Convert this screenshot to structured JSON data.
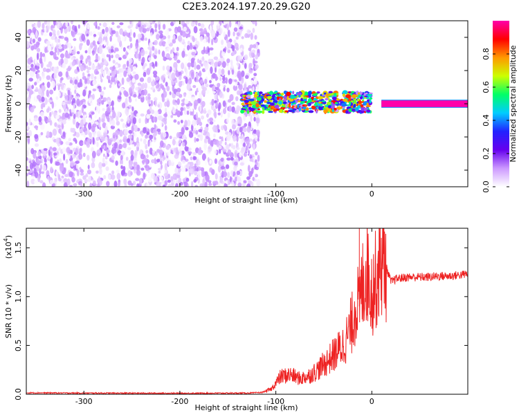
{
  "title": "C2E3.2024.197.20.29.G20",
  "chart_data": [
    {
      "type": "heatmap",
      "xlabel": "Height of straight line (km)",
      "ylabel": "Frequency (Hz)",
      "xlim": [
        -360,
        100
      ],
      "ylim": [
        -50,
        50
      ],
      "x_ticks": [
        -300,
        -200,
        -100,
        0
      ],
      "x_tick_labels": [
        "-300",
        "-200",
        "-100",
        "0"
      ],
      "y_ticks": [
        -40,
        -20,
        0,
        20,
        40
      ],
      "y_tick_labels": [
        "-40",
        "-20",
        "0",
        "20",
        "40"
      ],
      "colorbar": {
        "label": "Normalized spectral amplitude",
        "range": [
          0,
          1
        ],
        "ticks": [
          0.0,
          0.2,
          0.4,
          0.6,
          0.8
        ],
        "tick_labels": [
          "0.0",
          "0.2",
          "0.4",
          "0.6",
          "0.8"
        ],
        "colors": [
          "#ffffff",
          "#cc99ff",
          "#6600ee",
          "#2222ff",
          "#00ccff",
          "#00ff66",
          "#ccff00",
          "#ff9900",
          "#ff0000",
          "#ff00aa"
        ]
      },
      "regions": [
        {
          "description_x_range": [
            -360,
            -118
          ],
          "frequency_range": [
            -50,
            50
          ],
          "amplitude_range": [
            0.0,
            0.15
          ]
        },
        {
          "description_x_range": [
            -135,
            0
          ],
          "frequency_center": 1,
          "frequency_halfwidth": 6,
          "amplitude_range": [
            0.1,
            0.9
          ]
        },
        {
          "description_x_range": [
            10,
            100
          ],
          "frequency_center": 0,
          "frequency_halfwidth": 2,
          "amplitude_range": [
            0.9,
            1.0
          ]
        }
      ]
    },
    {
      "type": "line",
      "xlabel": "Height of straight line (km)",
      "ylabel": "SNR (10 * v/v)",
      "scale_label": "(x10",
      "scale_exp": "4",
      "scale_close": ")",
      "xlim": [
        -360,
        100
      ],
      "ylim": [
        0,
        17000
      ],
      "x_ticks": [
        -300,
        -200,
        -100,
        0
      ],
      "x_tick_labels": [
        "-300",
        "-200",
        "-100",
        "0"
      ],
      "y_ticks": [
        0,
        5000,
        10000,
        15000
      ],
      "y_tick_labels": [
        "0.0",
        "0.5",
        "1.0",
        "1.5"
      ],
      "color": "#ee2222",
      "series": [
        {
          "x": [
            -360,
            -300,
            -200,
            -130,
            -115,
            -105,
            -95,
            -85,
            -75,
            -65,
            -55,
            -45,
            -38,
            -30,
            -25,
            -20,
            -16,
            -13,
            -10,
            -5,
            0,
            5,
            10,
            15,
            20,
            25,
            30,
            40,
            50,
            60,
            70,
            80,
            90,
            100
          ],
          "y": [
            150,
            120,
            100,
            120,
            180,
            500,
            1800,
            2000,
            1600,
            1900,
            2600,
            3500,
            4200,
            5000,
            6000,
            7500,
            9500,
            9000,
            11000,
            13000,
            10500,
            12000,
            14000,
            13000,
            11500,
            11800,
            11900,
            12000,
            12000,
            12000,
            12100,
            12100,
            12200,
            12300
          ]
        }
      ]
    }
  ]
}
